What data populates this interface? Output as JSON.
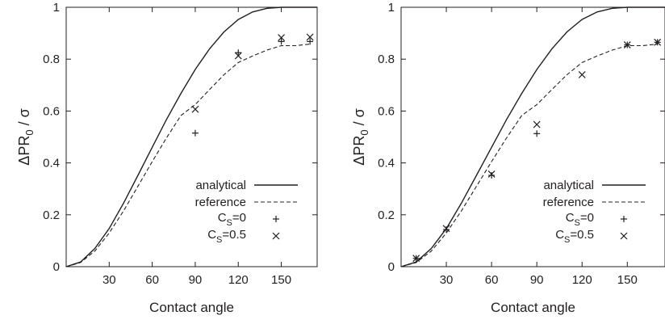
{
  "chart_data": [
    {
      "type": "line",
      "xlabel": "Contact angle",
      "ylabel": {
        "main": "ΔPR",
        "sub": "0",
        "tail": " / σ"
      },
      "xlim": [
        0,
        175
      ],
      "ylim": [
        0,
        1
      ],
      "xticks": [
        30,
        60,
        90,
        120,
        150
      ],
      "yticks": [
        0,
        0.2,
        0.4,
        0.6,
        0.8,
        1
      ],
      "ytick_labels": [
        "0",
        "0.2",
        "0.4",
        "0.6",
        "0.8",
        "1"
      ],
      "grid": false,
      "legend_position": "bottom-right",
      "series": [
        {
          "name": "analytical",
          "style": "solid",
          "x": [
            0,
            10,
            20,
            30,
            40,
            50,
            60,
            70,
            80,
            90,
            100,
            110,
            120,
            130,
            140,
            150,
            160,
            170,
            175
          ],
          "y": [
            0,
            0.018,
            0.07,
            0.147,
            0.245,
            0.352,
            0.46,
            0.568,
            0.668,
            0.76,
            0.84,
            0.905,
            0.953,
            0.982,
            0.996,
            1.0,
            1.0,
            1.0,
            1.0
          ]
        },
        {
          "name": "reference",
          "style": "dashed",
          "x": [
            0,
            10,
            20,
            30,
            40,
            50,
            60,
            70,
            80,
            90,
            100,
            110,
            120,
            130,
            140,
            150,
            160,
            170
          ],
          "y": [
            0,
            0.016,
            0.06,
            0.13,
            0.215,
            0.31,
            0.405,
            0.497,
            0.583,
            0.625,
            0.683,
            0.74,
            0.787,
            0.812,
            0.835,
            0.852,
            0.852,
            0.858
          ]
        },
        {
          "name": {
            "main": "C",
            "sub": "S",
            "tail": "=0"
          },
          "style": "marker-plus",
          "x": [
            90,
            120,
            150,
            170
          ],
          "y": [
            0.515,
            0.825,
            0.868,
            0.868
          ]
        },
        {
          "name": {
            "main": "C",
            "sub": "S",
            "tail": "=0.5"
          },
          "style": "marker-x",
          "x": [
            90,
            120,
            150,
            170
          ],
          "y": [
            0.607,
            0.813,
            0.883,
            0.885
          ]
        }
      ]
    },
    {
      "type": "line",
      "xlabel": "Contact angle",
      "ylabel": {
        "main": "ΔPR",
        "sub": "0",
        "tail": " / σ"
      },
      "xlim": [
        0,
        175
      ],
      "ylim": [
        0,
        1
      ],
      "xticks": [
        30,
        60,
        90,
        120,
        150
      ],
      "yticks": [
        0,
        0.2,
        0.4,
        0.6,
        0.8,
        1
      ],
      "ytick_labels": [
        "0",
        "0.2",
        "0.4",
        "0.6",
        "0.8",
        "1"
      ],
      "grid": false,
      "legend_position": "bottom-right",
      "series": [
        {
          "name": "analytical",
          "style": "solid",
          "x": [
            0,
            10,
            20,
            30,
            40,
            50,
            60,
            70,
            80,
            90,
            100,
            110,
            120,
            130,
            140,
            150,
            160,
            170,
            175
          ],
          "y": [
            0,
            0.018,
            0.07,
            0.147,
            0.245,
            0.352,
            0.46,
            0.568,
            0.668,
            0.76,
            0.84,
            0.905,
            0.953,
            0.982,
            0.996,
            1.0,
            1.0,
            1.0,
            1.0
          ]
        },
        {
          "name": "reference",
          "style": "dashed",
          "x": [
            0,
            10,
            20,
            30,
            40,
            50,
            60,
            70,
            80,
            90,
            100,
            110,
            120,
            130,
            140,
            150,
            160,
            170
          ],
          "y": [
            0,
            0.016,
            0.06,
            0.13,
            0.215,
            0.31,
            0.405,
            0.497,
            0.583,
            0.625,
            0.683,
            0.74,
            0.787,
            0.812,
            0.835,
            0.852,
            0.852,
            0.858
          ]
        },
        {
          "name": {
            "main": "C",
            "sub": "S",
            "tail": "=0"
          },
          "style": "marker-plus",
          "x": [
            10,
            30,
            60,
            90,
            150,
            170
          ],
          "y": [
            0.032,
            0.143,
            0.352,
            0.513,
            0.855,
            0.865
          ]
        },
        {
          "name": {
            "main": "C",
            "sub": "S",
            "tail": "=0.5"
          },
          "style": "marker-x",
          "x": [
            10,
            30,
            60,
            90,
            120,
            150,
            170
          ],
          "y": [
            0.032,
            0.147,
            0.357,
            0.548,
            0.74,
            0.855,
            0.865
          ]
        }
      ]
    }
  ]
}
